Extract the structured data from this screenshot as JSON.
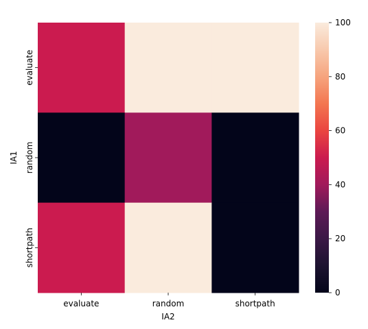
{
  "chart_data": {
    "type": "heatmap",
    "xlabel": "IA2",
    "ylabel": "IA1",
    "x_categories": [
      "evaluate",
      "random",
      "shortpath"
    ],
    "y_categories": [
      "evaluate",
      "random",
      "shortpath"
    ],
    "values": [
      [
        50,
        100,
        100
      ],
      [
        0,
        40,
        0
      ],
      [
        50,
        100,
        0
      ]
    ],
    "colorbar": {
      "min": 0,
      "max": 100,
      "ticks": [
        0,
        20,
        40,
        60,
        80,
        100
      ],
      "colormap": "rocket"
    },
    "grid": false
  }
}
